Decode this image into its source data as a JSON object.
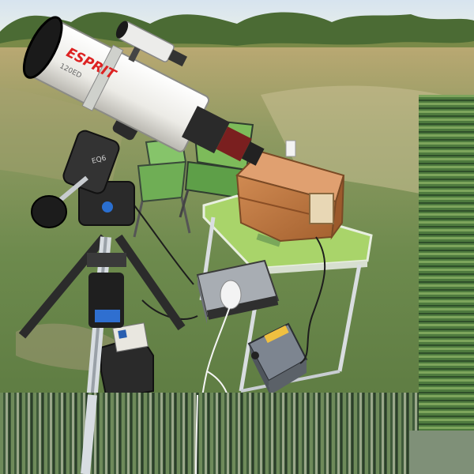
{
  "telescope": {
    "brand_label": "ESPRIT",
    "model_label": "120ED",
    "mount_label": "EQ6"
  },
  "colors": {
    "sky": "#dfe9f2",
    "grass": "#6f8a4e",
    "tube_white": "#f2f2f0",
    "wood_box": "#c07a45",
    "table_top": "#a9d46a",
    "battery": "#7d8590"
  }
}
